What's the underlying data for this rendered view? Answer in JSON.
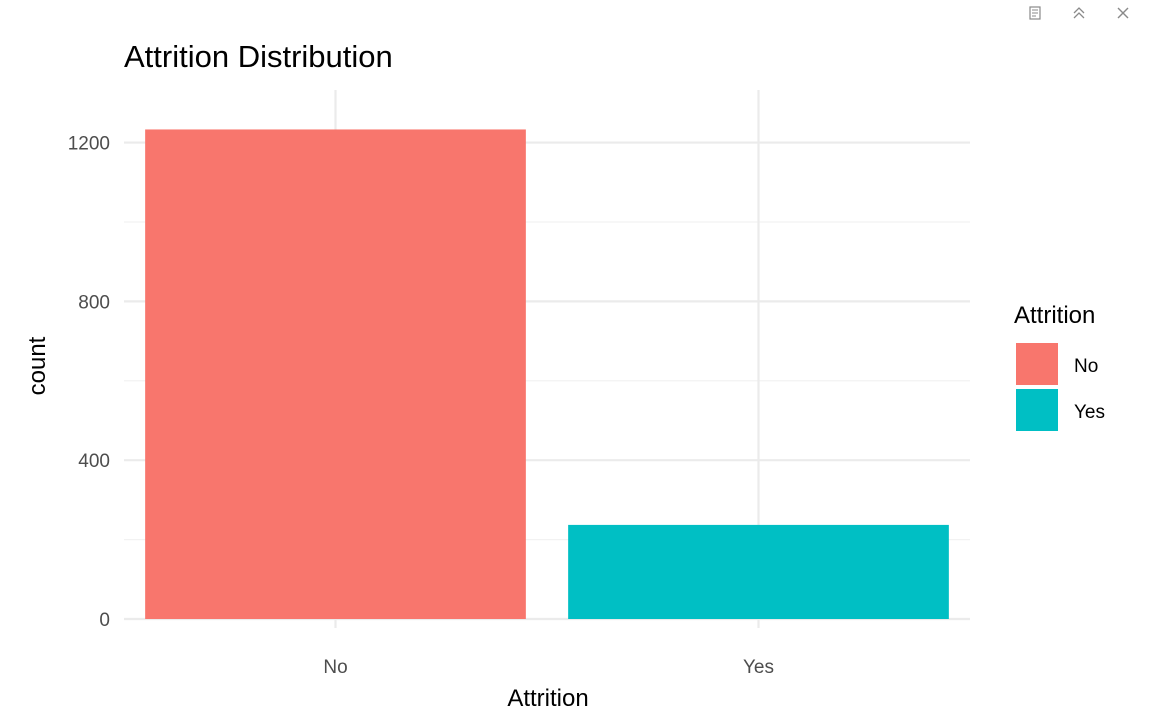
{
  "toolbar": {
    "icons": [
      "popout-icon",
      "collapse-icon",
      "close-icon"
    ]
  },
  "chart_data": {
    "type": "bar",
    "title": "Attrition Distribution",
    "xlabel": "Attrition",
    "ylabel": "count",
    "categories": [
      "No",
      "Yes"
    ],
    "values": [
      1233,
      237
    ],
    "colors": [
      "#F8766D",
      "#00BFC4"
    ],
    "ylim": [
      0,
      1350
    ],
    "yticks": [
      0,
      400,
      800,
      1200
    ],
    "yticks_labels": [
      "0",
      "400",
      "800",
      "1200"
    ],
    "grid": true,
    "legend": {
      "title": "Attrition",
      "placement": "right",
      "entries": [
        "No",
        "Yes"
      ]
    }
  }
}
